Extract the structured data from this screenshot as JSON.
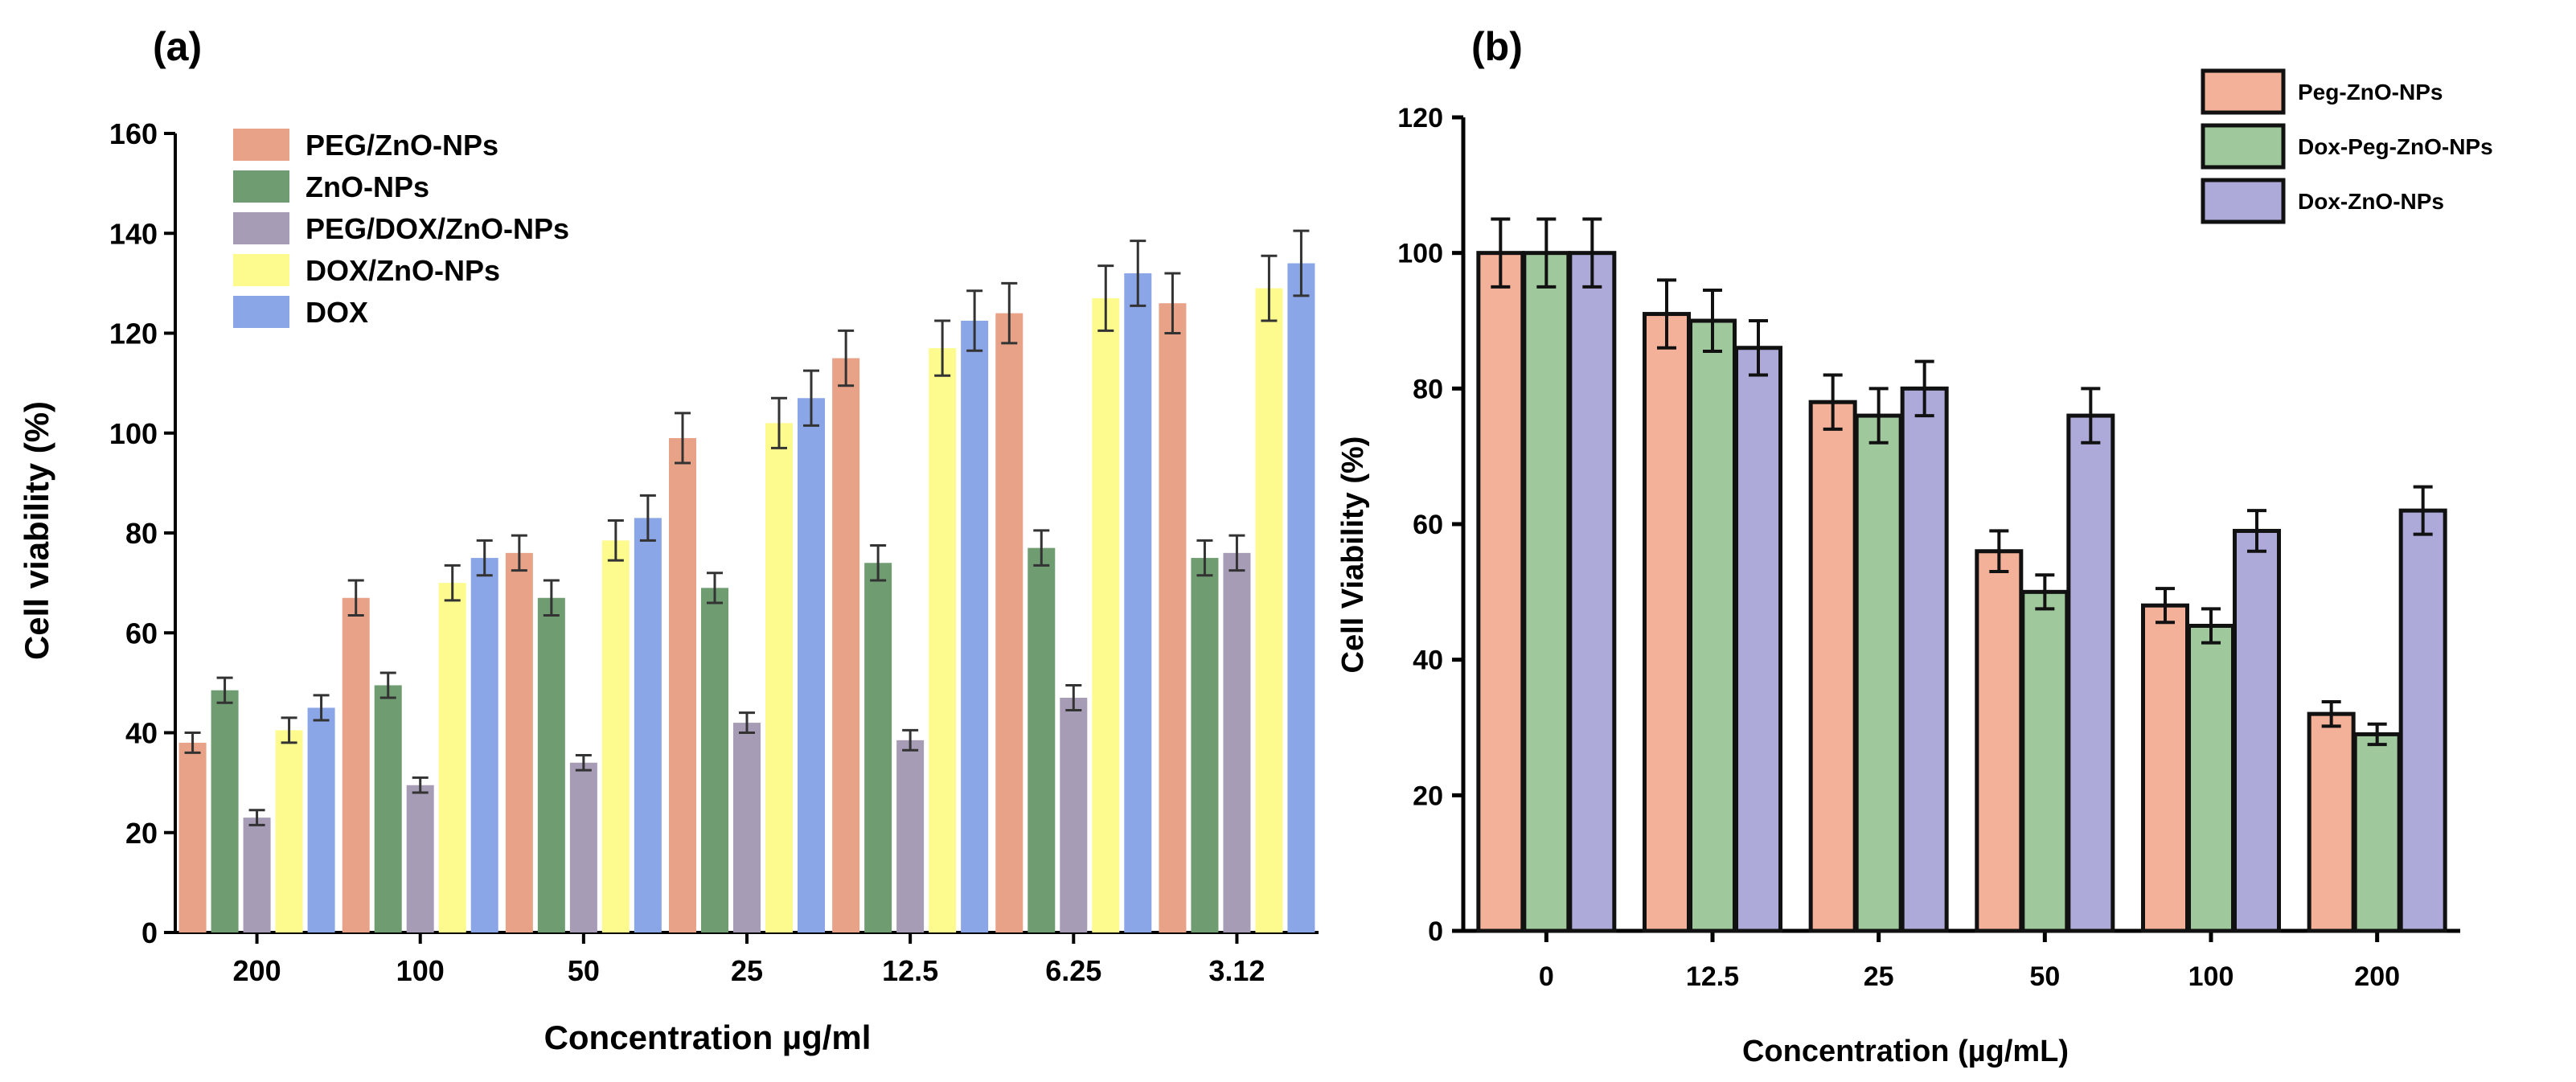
{
  "chart_data": [
    {
      "type": "bar",
      "panel_label": "(a)",
      "title": "",
      "xlabel": "Concentration µg/ml",
      "ylabel": "Cell viability (%)",
      "ylim": [
        0,
        160
      ],
      "yticks": [
        0,
        20,
        40,
        60,
        80,
        100,
        120,
        140,
        160
      ],
      "categories": [
        "200",
        "100",
        "50",
        "25",
        "12.5",
        "6.25",
        "3.12"
      ],
      "legend_position": "top-left",
      "series": [
        {
          "name": "PEG/ZnO-NPs",
          "color": "#e8a287",
          "values": [
            38,
            67,
            76,
            99,
            115,
            124,
            126
          ],
          "errors": [
            2,
            3.5,
            3.5,
            5,
            5.5,
            6,
            6
          ]
        },
        {
          "name": "ZnO-NPs",
          "color": "#6f9c70",
          "values": [
            48.5,
            49.5,
            67,
            69,
            74,
            77,
            75
          ],
          "errors": [
            2.5,
            2.5,
            3.5,
            3,
            3.5,
            3.5,
            3.5
          ]
        },
        {
          "name": "PEG/DOX/ZnO-NPs",
          "color": "#a79cb6",
          "values": [
            23,
            29.5,
            34,
            42,
            38.5,
            47,
            76
          ],
          "errors": [
            1.5,
            1.5,
            1.5,
            2,
            2,
            2.5,
            3.5
          ]
        },
        {
          "name": "DOX/ZnO-NPs",
          "color": "#fdfb8e",
          "values": [
            40.5,
            70,
            78.5,
            102,
            117,
            127,
            129
          ],
          "errors": [
            2.5,
            3.5,
            4,
            5,
            5.5,
            6.5,
            6.5
          ]
        },
        {
          "name": "DOX",
          "color": "#8ba6e6",
          "values": [
            45,
            75,
            83,
            107,
            122.5,
            132,
            134
          ],
          "errors": [
            2.5,
            3.5,
            4.5,
            5.5,
            6,
            6.5,
            6.5
          ]
        }
      ]
    },
    {
      "type": "bar",
      "panel_label": "(b)",
      "title": "",
      "xlabel": "Concentration (µg/mL)",
      "ylabel": "Cell Viability (%)",
      "ylim": [
        0,
        120
      ],
      "yticks": [
        0,
        20,
        40,
        60,
        80,
        100,
        120
      ],
      "categories": [
        "0",
        "12.5",
        "25",
        "50",
        "100",
        "200"
      ],
      "legend_position": "top-right",
      "series": [
        {
          "name": "Peg-ZnO-NPs",
          "color": "#f3b199",
          "values": [
            100,
            91,
            78,
            56,
            48,
            32
          ],
          "errors": [
            5,
            5,
            4,
            3,
            2.5,
            1.8
          ]
        },
        {
          "name": "Dox-Peg-ZnO-NPs",
          "color": "#9fc89c",
          "values": [
            100,
            90,
            76,
            50,
            45,
            29
          ],
          "errors": [
            5,
            4.5,
            4,
            2.5,
            2.5,
            1.5
          ]
        },
        {
          "name": "Dox-ZnO-NPs",
          "color": "#adaad9",
          "values": [
            100,
            86,
            80,
            76,
            59,
            62
          ],
          "errors": [
            5,
            4,
            4,
            4,
            3,
            3.5
          ]
        }
      ]
    }
  ]
}
